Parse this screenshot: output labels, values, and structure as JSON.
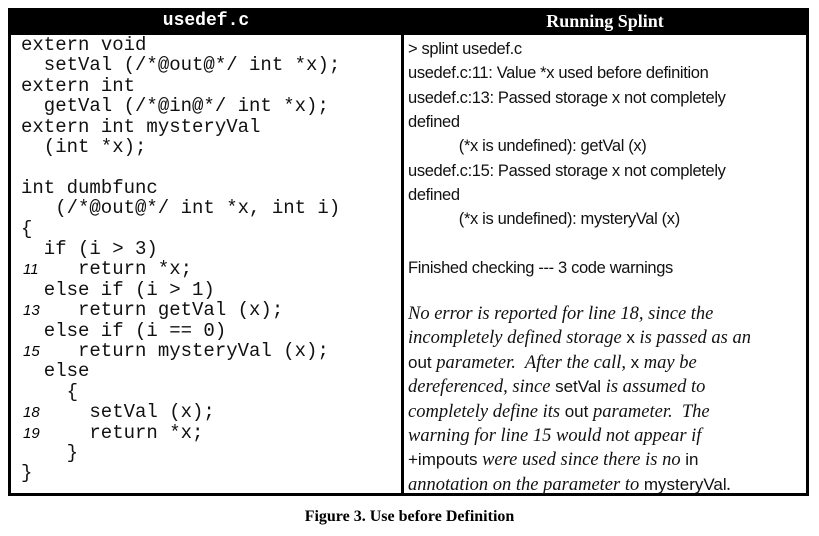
{
  "left": {
    "title": "usedef.c",
    "code": [
      "extern void",
      "  setVal (/*@out@*/ int *x);",
      "extern int",
      "  getVal (/*@in@*/ int *x);",
      "extern int mysteryVal",
      "  (int *x);",
      "",
      "int dumbfunc",
      "   (/*@out@*/ int *x, int i)",
      "{",
      "  if (i > 3)",
      "     return *x;",
      "  else if (i > 1)",
      "     return getVal (x);",
      "  else if (i == 0)",
      "     return mysteryVal (x);",
      "  else",
      "    {",
      "      setVal (x);",
      "      return *x;",
      "    }",
      "}"
    ],
    "line_numbers": [
      {
        "row": 11,
        "n": "11"
      },
      {
        "row": 13,
        "n": "13"
      },
      {
        "row": 15,
        "n": "15"
      },
      {
        "row": 18,
        "n": "18"
      },
      {
        "row": 19,
        "n": "19"
      }
    ]
  },
  "right": {
    "title": "Running Splint",
    "output": [
      "> splint usedef.c",
      "usedef.c:11: Value *x used before definition",
      "usedef.c:13: Passed storage x not completely",
      "defined",
      "            (*x is undefined): getVal (x)",
      "usedef.c:15: Passed storage x not completely",
      "defined",
      "            (*x is undefined): mysteryVal (x)",
      "",
      "Finished checking --- 3 code warnings"
    ],
    "note": [
      [
        [
          "No error is reported for line 18, since the",
          0
        ]
      ],
      [
        [
          "incompletely defined storage ",
          0
        ],
        [
          "x",
          1
        ],
        [
          " is passed as an",
          0
        ]
      ],
      [
        [
          "out",
          1
        ],
        [
          " parameter.  After the call, ",
          0
        ],
        [
          "x",
          1
        ],
        [
          " may be",
          0
        ]
      ],
      [
        [
          "dereferenced, since ",
          0
        ],
        [
          "setVal",
          1
        ],
        [
          " is assumed to",
          0
        ]
      ],
      [
        [
          "completely define its ",
          0
        ],
        [
          "out",
          1
        ],
        [
          " parameter.  The",
          0
        ]
      ],
      [
        [
          "warning for line 15 would not appear if",
          0
        ]
      ],
      [
        [
          "+impouts",
          1
        ],
        [
          " were used since there is no ",
          0
        ],
        [
          "in",
          1
        ]
      ],
      [
        [
          "annotation on the parameter to ",
          0
        ],
        [
          "mysteryVal",
          1
        ],
        [
          ".",
          0
        ]
      ]
    ]
  },
  "caption": "Figure 3.  Use before Definition"
}
